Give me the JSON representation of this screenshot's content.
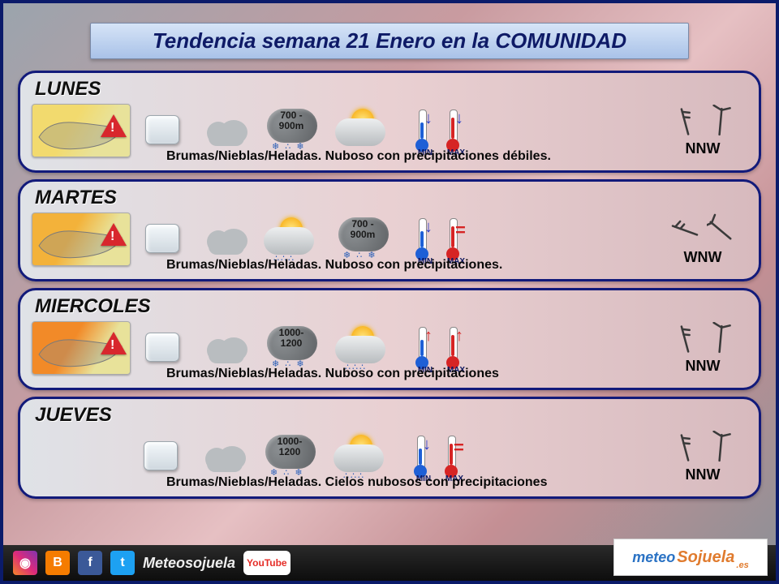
{
  "title": "Tendencia semana 21 Enero en la COMUNIDAD",
  "days": [
    {
      "name": "LUNES",
      "map_bg": "#f2da6e",
      "snow_level": "700 - 900m",
      "description": "Brumas/Nieblas/Heladas. Nuboso con precipitaciones débiles.",
      "min_trend": "down",
      "max_trend": "down",
      "wind_dir": "NNW",
      "wind_angle_deg": -15,
      "second_cloud_type": "suncloud_norain",
      "show_alert": true
    },
    {
      "name": "MARTES",
      "map_bg": "#f3b23a",
      "snow_level": "700 - 900m",
      "description": "Brumas/Nieblas/Heladas. Nuboso con precipitaciones.",
      "min_trend": "down",
      "max_trend": "equal",
      "wind_dir": "WNW",
      "wind_angle_deg": -70,
      "second_cloud_type": "suncloud_rain_first",
      "show_alert": true
    },
    {
      "name": "MIERCOLES",
      "map_bg": "#f28a28",
      "snow_level": "1000- 1200",
      "description": "Brumas/Nieblas/Heladas. Nuboso con precipitaciones",
      "min_trend": "up",
      "max_trend": "up",
      "wind_dir": "NNW",
      "wind_angle_deg": -15,
      "second_cloud_type": "suncloud_rain",
      "show_alert": true
    },
    {
      "name": "JUEVES",
      "map_bg": "none",
      "snow_level": "1000- 1200",
      "description": "Brumas/Nieblas/Heladas. Cielos nubosos con precipitaciones",
      "min_trend": "down",
      "max_trend": "equal",
      "wind_dir": "NNW",
      "wind_angle_deg": -15,
      "second_cloud_type": "suncloud_rain",
      "show_alert": false
    }
  ],
  "thermo_labels": {
    "min": "MIN",
    "max": "MAX"
  },
  "footer": {
    "handle": "Meteosojuela",
    "brand_left": "meteo",
    "brand_right": "Sojuela",
    "brand_tld": ".es"
  },
  "colors": {
    "border": "#121a7a",
    "cold": "#1e5fd6",
    "hot": "#d62424",
    "arrow_down": "#2a3ec9",
    "arrow_up": "#d62424"
  }
}
